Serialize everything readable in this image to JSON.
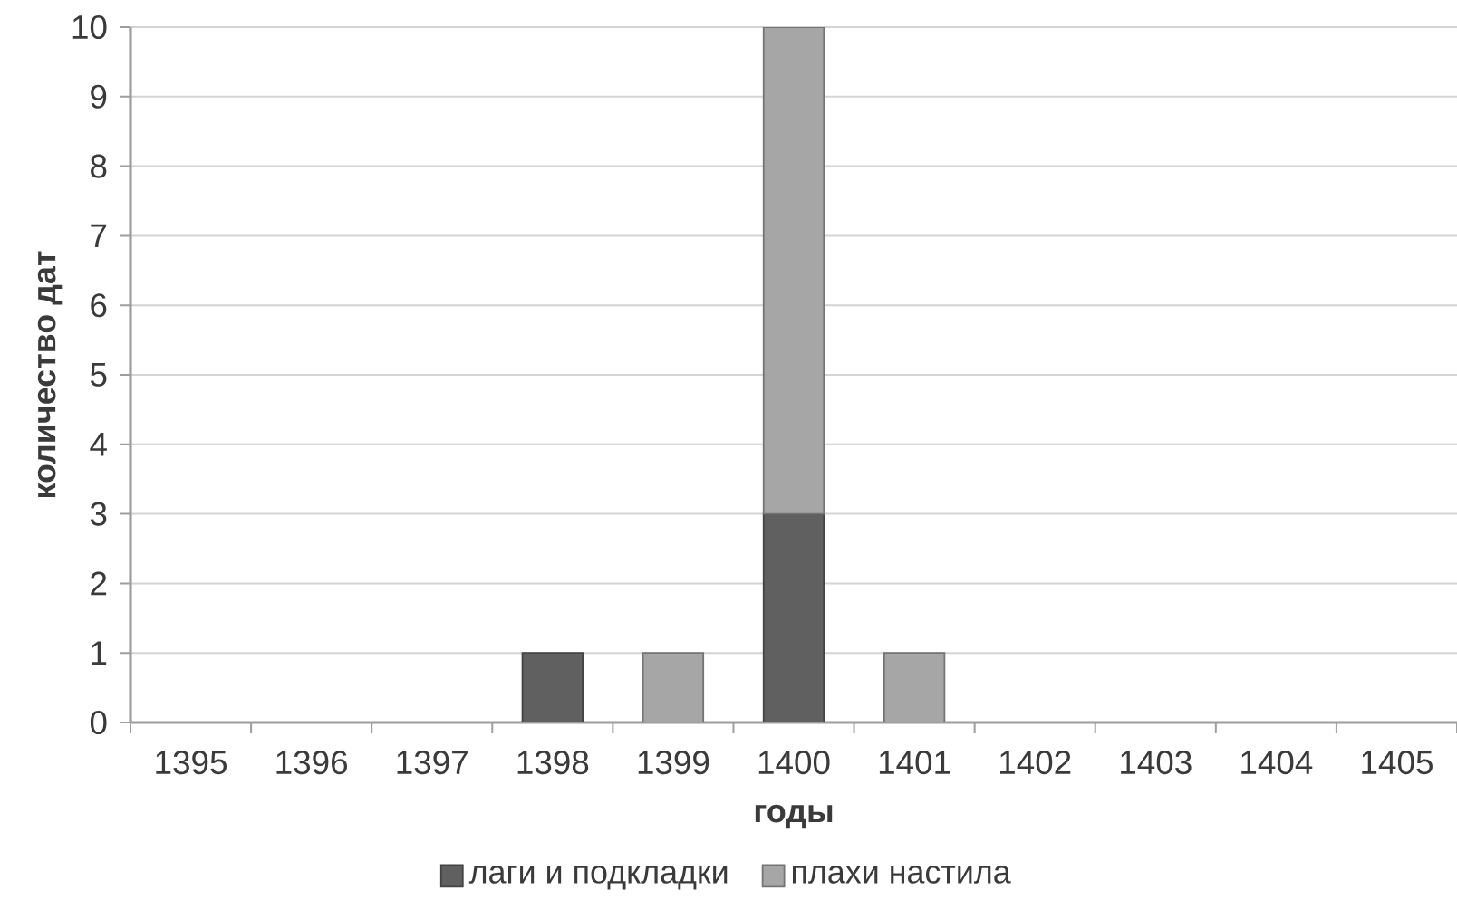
{
  "chart_data": {
    "type": "bar",
    "stacked": true,
    "xlabel": "годы",
    "ylabel": "количество дат",
    "categories": [
      "1395",
      "1396",
      "1397",
      "1398",
      "1399",
      "1400",
      "1401",
      "1402",
      "1403",
      "1404",
      "1405"
    ],
    "series": [
      {
        "name": "лаги и подкладки",
        "color": "#606060",
        "values": [
          0,
          0,
          0,
          1,
          0,
          3,
          0,
          0,
          0,
          0,
          0
        ]
      },
      {
        "name": "плахи настила",
        "color": "#a6a6a6",
        "values": [
          0,
          0,
          0,
          0,
          1,
          7,
          1,
          0,
          0,
          0,
          0
        ]
      }
    ],
    "ylim": [
      0,
      10
    ],
    "yticks": [
      0,
      1,
      2,
      3,
      4,
      5,
      6,
      7,
      8,
      9,
      10
    ],
    "grid": "y",
    "legend": "bottom"
  }
}
